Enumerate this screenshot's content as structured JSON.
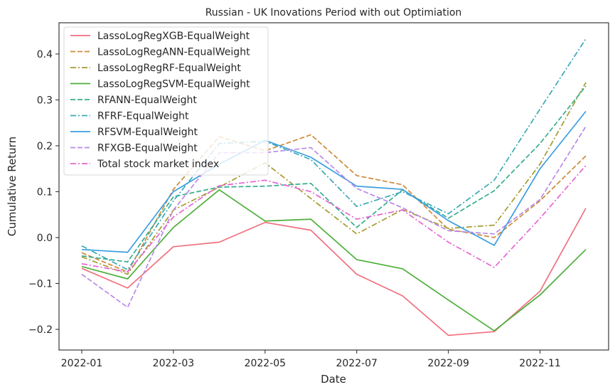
{
  "chart_data": {
    "type": "line",
    "title": "Russian - UK Inovations Period with out Optimiation",
    "xlabel": "Date",
    "ylabel": "Cumulative Return",
    "x": [
      "2022-01",
      "2022-02",
      "2022-03",
      "2022-04",
      "2022-05",
      "2022-06",
      "2022-07",
      "2022-08",
      "2022-09",
      "2022-10",
      "2022-11",
      "2022-12"
    ],
    "x_tick_labels": [
      "2022-01",
      "2022-03",
      "2022-05",
      "2022-07",
      "2022-09",
      "2022-11"
    ],
    "y_tick_values": [
      -0.2,
      -0.1,
      0.0,
      0.1,
      0.2,
      0.3,
      0.4
    ],
    "y_tick_labels": [
      "−0.2",
      "−0.1",
      "0.0",
      "0.1",
      "0.2",
      "0.3",
      "0.4"
    ],
    "ylim": [
      -0.245,
      0.468
    ],
    "grid": false,
    "legend_position": "top-left",
    "series": [
      {
        "name": "LassoLogRegXGB-EqualWeight",
        "color": "#f0707f",
        "dash": "solid",
        "values": [
          -0.067,
          -0.11,
          -0.02,
          -0.01,
          0.033,
          0.016,
          -0.08,
          -0.127,
          -0.213,
          -0.205,
          -0.117,
          0.064
        ]
      },
      {
        "name": "LassoLogRegANN-EqualWeight",
        "color": "#ce8a3a",
        "dash": "dashed",
        "values": [
          -0.033,
          -0.075,
          0.105,
          0.22,
          0.189,
          0.224,
          0.135,
          0.115,
          0.018,
          0.0,
          0.08,
          0.178
        ]
      },
      {
        "name": "LassoLogRegRF-EqualWeight",
        "color": "#a59b30",
        "dash": "dashdot",
        "values": [
          -0.042,
          -0.08,
          0.06,
          0.11,
          0.163,
          0.085,
          0.008,
          0.061,
          0.02,
          0.027,
          0.16,
          0.338
        ]
      },
      {
        "name": "LassoLogRegSVM-EqualWeight",
        "color": "#4daf3a",
        "dash": "solid",
        "values": [
          -0.063,
          -0.09,
          0.022,
          0.104,
          0.036,
          0.04,
          -0.048,
          -0.068,
          -0.136,
          -0.203,
          -0.125,
          -0.026
        ]
      },
      {
        "name": "RFANN-EqualWeight",
        "color": "#36ad8f",
        "dash": "dashed",
        "values": [
          -0.04,
          -0.053,
          0.089,
          0.11,
          0.112,
          0.118,
          0.022,
          0.104,
          0.042,
          0.102,
          0.205,
          0.33
        ]
      },
      {
        "name": "RFRF-EqualWeight",
        "color": "#38aab8",
        "dash": "dashdot",
        "values": [
          -0.018,
          -0.07,
          0.08,
          0.205,
          0.21,
          0.17,
          0.068,
          0.1,
          0.052,
          0.125,
          0.28,
          0.433
        ]
      },
      {
        "name": "RFSVM-EqualWeight",
        "color": "#3b9ee0",
        "dash": "solid",
        "values": [
          -0.026,
          -0.032,
          0.1,
          0.16,
          0.212,
          0.175,
          0.112,
          0.105,
          0.037,
          -0.017,
          0.15,
          0.275
        ]
      },
      {
        "name": "RFXGB-EqualWeight",
        "color": "#b88ae8",
        "dash": "dashed",
        "values": [
          -0.08,
          -0.152,
          0.06,
          0.185,
          0.185,
          0.196,
          0.107,
          0.065,
          0.015,
          0.008,
          0.083,
          0.242
        ]
      },
      {
        "name": "Total stock market index",
        "color": "#e664d4",
        "dash": "dashdot",
        "values": [
          -0.057,
          -0.075,
          0.045,
          0.113,
          0.125,
          0.1,
          0.04,
          0.06,
          -0.01,
          -0.065,
          0.042,
          0.157
        ]
      }
    ]
  }
}
